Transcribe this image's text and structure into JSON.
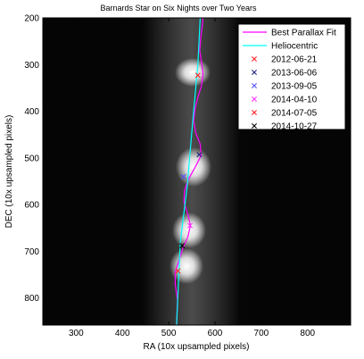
{
  "chart_data": {
    "type": "scatter",
    "title": "Barnards Star on Six Nights over Two Years",
    "xlabel": "RA  (10x upsampled pixels)",
    "ylabel": "DEC  (10x upsampled pixels)",
    "xlim": [
      228,
      893
    ],
    "ylim": [
      200,
      858
    ],
    "y_reversed": true,
    "xticks": [
      "300",
      "400",
      "500",
      "600",
      "700",
      "800"
    ],
    "yticks": [
      "200",
      "300",
      "400",
      "500",
      "600",
      "700",
      "800"
    ],
    "background": "grayscale star exposures",
    "legend_position": "top-right",
    "curves": [
      {
        "name": "Best Parallax Fit",
        "color": "#ff00ff",
        "points": [
          [
            517,
            858
          ],
          [
            519,
            805
          ],
          [
            514,
            770
          ],
          [
            514,
            745
          ],
          [
            522,
            720
          ],
          [
            530,
            695
          ],
          [
            541,
            670
          ],
          [
            547,
            645
          ],
          [
            541,
            620
          ],
          [
            533,
            595
          ],
          [
            534,
            570
          ],
          [
            543,
            545
          ],
          [
            557,
            520
          ],
          [
            570,
            495
          ],
          [
            568,
            470
          ],
          [
            558,
            445
          ],
          [
            554,
            420
          ],
          [
            557,
            395
          ],
          [
            563,
            370
          ],
          [
            571,
            345
          ],
          [
            574,
            320
          ],
          [
            571,
            295
          ],
          [
            567,
            270
          ],
          [
            569,
            245
          ],
          [
            572,
            220
          ],
          [
            574,
            200
          ]
        ]
      },
      {
        "name": "Heliocentric",
        "color": "#00ffff",
        "points": [
          [
            517,
            858
          ],
          [
            525,
            680
          ],
          [
            540,
            560
          ],
          [
            552,
            420
          ],
          [
            563,
            300
          ],
          [
            568,
            200
          ]
        ]
      }
    ],
    "series": [
      {
        "name": "2012-06-21",
        "color": "#ff2020",
        "x": [
          563
        ],
        "y": [
          323
        ]
      },
      {
        "name": "2013-06-06",
        "color": "#202080",
        "x": [
          566
        ],
        "y": [
          493
        ]
      },
      {
        "name": "2013-09-05",
        "color": "#5050ff",
        "x": [
          532
        ],
        "y": [
          540
        ]
      },
      {
        "name": "2014-04-10",
        "color": "#ff30ff",
        "x": [
          546
        ],
        "y": [
          645
        ]
      },
      {
        "name": "2014-07-05",
        "color": "#ff2020",
        "x": [
          520
        ],
        "y": [
          742
        ]
      },
      {
        "name": "2014-10-27",
        "color": "#000000",
        "x": [
          529
        ],
        "y": [
          688
        ]
      }
    ]
  }
}
